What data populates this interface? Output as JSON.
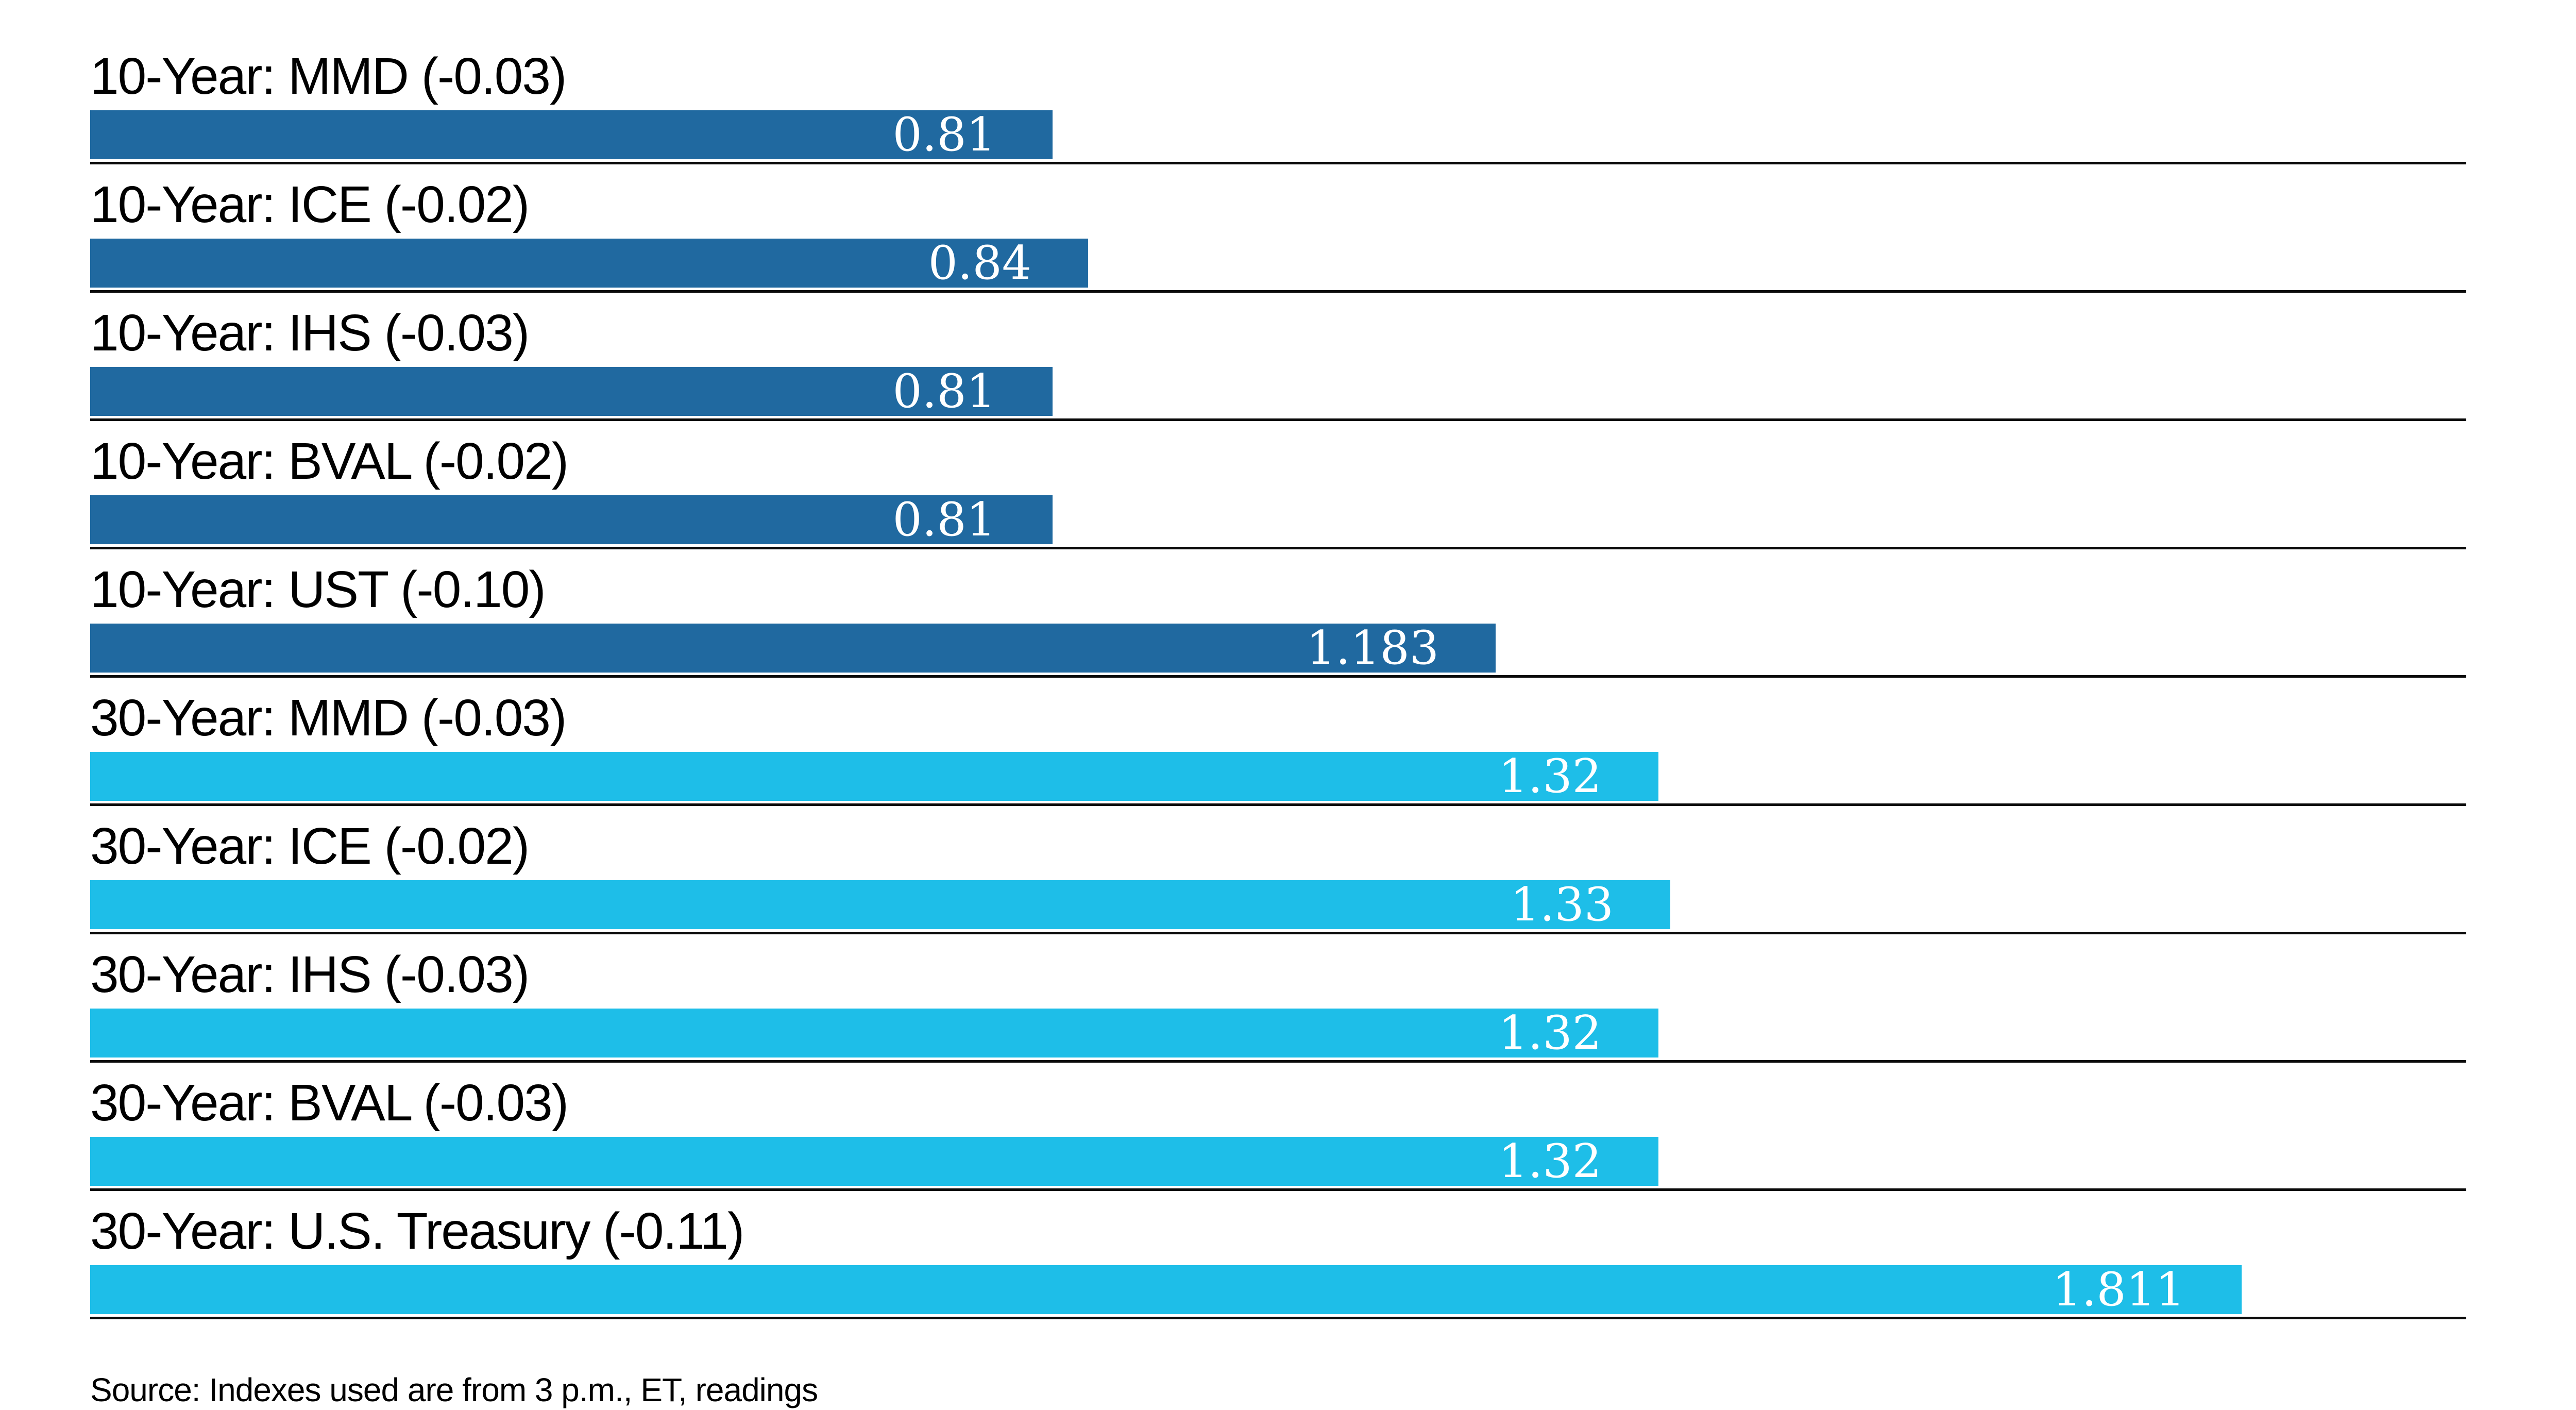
{
  "chart_data": {
    "type": "bar",
    "orientation": "horizontal",
    "title": "",
    "xlabel": "",
    "ylabel": "",
    "xlim": [
      0,
      2.0
    ],
    "grid": "row-divider-lines",
    "legend": "none",
    "categories": [
      "10-Year: MMD (-0.03)",
      "10-Year: ICE (-0.02)",
      "10-Year: IHS (-0.03)",
      "10-Year: BVAL (-0.02)",
      "10-Year: UST (-0.10)",
      "30-Year: MMD (-0.03)",
      "30-Year: ICE (-0.02)",
      "30-Year: IHS (-0.03)",
      "30-Year: BVAL (-0.03)",
      "30-Year: U.S. Treasury (-0.11)"
    ],
    "values": [
      0.81,
      0.84,
      0.81,
      0.81,
      1.183,
      1.32,
      1.33,
      1.32,
      1.32,
      1.811
    ],
    "source": "Source: Indexes used are from 3 p.m., ET, readings"
  },
  "colors": {
    "ten_year_bar": "#2069a0",
    "thirty_year_bar": "#1ebee8",
    "divider_line": "#0a0a0a",
    "value_text": "#ffffff",
    "label_text": "#000000"
  },
  "rows": [
    {
      "id": "10y-mmd",
      "group": "10-year",
      "label": "10-Year: MMD (-0.03)",
      "value": 0.81,
      "value_label": "0.81"
    },
    {
      "id": "10y-ice",
      "group": "10-year",
      "label": "10-Year: ICE (-0.02)",
      "value": 0.84,
      "value_label": "0.84"
    },
    {
      "id": "10y-ihs",
      "group": "10-year",
      "label": "10-Year: IHS (-0.03)",
      "value": 0.81,
      "value_label": "0.81"
    },
    {
      "id": "10y-bval",
      "group": "10-year",
      "label": "10-Year: BVAL (-0.02)",
      "value": 0.81,
      "value_label": "0.81"
    },
    {
      "id": "10y-ust",
      "group": "10-year",
      "label": "10-Year: UST (-0.10)",
      "value": 1.183,
      "value_label": "1.183"
    },
    {
      "id": "30y-mmd",
      "group": "30-year",
      "label": "30-Year: MMD (-0.03)",
      "value": 1.32,
      "value_label": "1.32"
    },
    {
      "id": "30y-ice",
      "group": "30-year",
      "label": "30-Year: ICE (-0.02)",
      "value": 1.33,
      "value_label": "1.33"
    },
    {
      "id": "30y-ihs",
      "group": "30-year",
      "label": "30-Year: IHS (-0.03)",
      "value": 1.32,
      "value_label": "1.32"
    },
    {
      "id": "30y-bval",
      "group": "30-year",
      "label": "30-Year: BVAL (-0.03)",
      "value": 1.32,
      "value_label": "1.32"
    },
    {
      "id": "30y-ust",
      "group": "30-year",
      "label": "30-Year: U.S. Treasury (-0.11)",
      "value": 1.811,
      "value_label": "1.811"
    }
  ],
  "footer": {
    "source_note": "Source: Indexes used are from 3 p.m., ET, readings"
  }
}
